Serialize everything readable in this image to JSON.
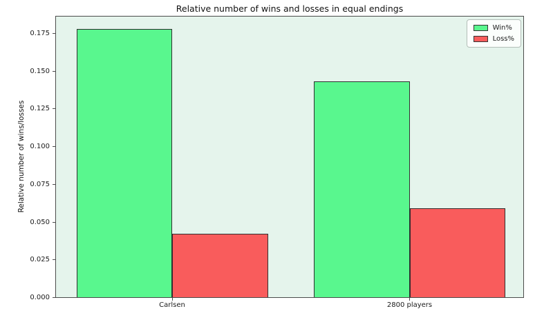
{
  "chart_data": {
    "type": "bar",
    "title": "Relative number of wins and losses in equal endings",
    "xlabel": "",
    "ylabel": "Relative number of wins/losses",
    "categories": [
      "Carlsen",
      "2800 players"
    ],
    "series": [
      {
        "name": "Win%",
        "color": "#59f78e",
        "values": [
          0.178,
          0.143
        ]
      },
      {
        "name": "Loss%",
        "color": "#f95c5c",
        "values": [
          0.042,
          0.059
        ]
      }
    ],
    "ylim": [
      0,
      0.186
    ],
    "yticks": [
      0.0,
      0.025,
      0.05,
      0.075,
      0.1,
      0.125,
      0.15,
      0.175
    ],
    "ytick_labels": [
      "0.000",
      "0.025",
      "0.050",
      "0.075",
      "0.100",
      "0.125",
      "0.150",
      "0.175"
    ],
    "grid": false,
    "legend_position": "upper right",
    "plot_bg": "#e5f4ec",
    "bar_edge_color": "#2f2f2f"
  }
}
